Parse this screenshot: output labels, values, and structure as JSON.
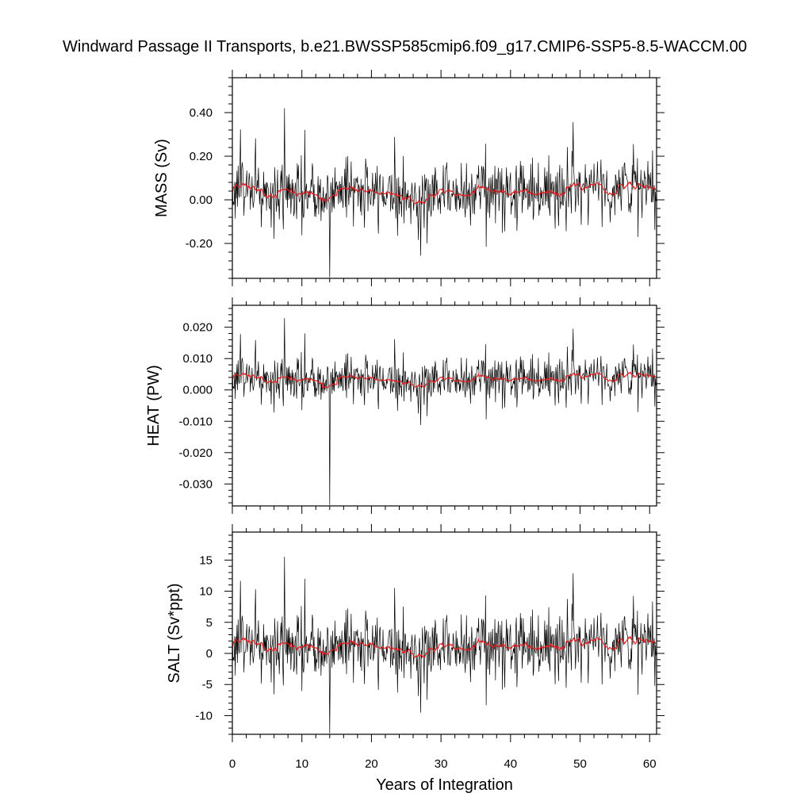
{
  "title": "Windward Passage II Transports, b.e21.BWSSP585cmip6.f09_g17.CMIP6-SSP5-8.5-WACCM.00",
  "colors": {
    "series": "#000000",
    "smoothed": "#e41a1c",
    "axes": "#000000"
  },
  "chart_data": [
    {
      "type": "line",
      "ylabel": "MASS (Sv)",
      "xlim": [
        0,
        61
      ],
      "ylim": [
        -0.36,
        0.56
      ],
      "yticks": [
        -0.2,
        0.0,
        0.2,
        0.4
      ],
      "ytick_labels": [
        "-0.20",
        "0.00",
        "0.20",
        "0.40"
      ],
      "grid": false,
      "series": [
        {
          "values": {
            "base": 0.0,
            "amp": 0.085,
            "seed": 11
          }
        },
        {
          "values": {
            "base": 0.0,
            "amp": 0.085,
            "seed": 11
          }
        }
      ]
    },
    {
      "type": "line",
      "ylabel": "HEAT (PW)",
      "xlim": [
        0,
        61
      ],
      "ylim": [
        -0.037,
        0.027
      ],
      "yticks": [
        -0.03,
        -0.02,
        -0.01,
        0.0,
        0.01,
        0.02
      ],
      "ytick_labels": [
        "-0.030",
        "-0.020",
        "-0.010",
        "0.000",
        "0.010",
        "0.020"
      ],
      "grid": false
    },
    {
      "type": "line",
      "ylabel": "SALT (Sv*ppt)",
      "xlabel": "Years of Integration",
      "xlim": [
        0,
        61
      ],
      "ylim": [
        -13,
        19.5
      ],
      "yticks": [
        -10,
        -5,
        0,
        5,
        10,
        15
      ],
      "ytick_labels": [
        "-10",
        "-5",
        "0",
        "5",
        "10",
        "15"
      ],
      "xticks": [
        0,
        10,
        20,
        30,
        40,
        50,
        60
      ],
      "xtick_labels": [
        "0",
        "10",
        "20",
        "30",
        "40",
        "50",
        "60"
      ],
      "grid": false
    }
  ]
}
